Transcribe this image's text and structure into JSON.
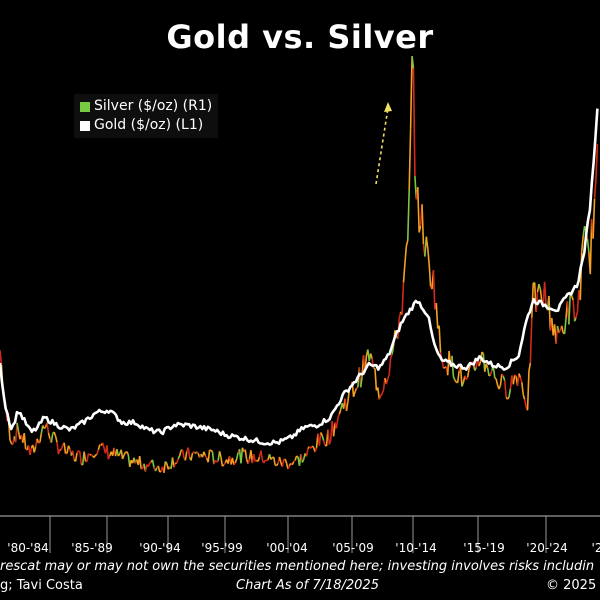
{
  "title": "Gold vs. Silver",
  "legend": [
    {
      "label": "Silver ($/oz) (R1)",
      "color": "#7ac943"
    },
    {
      "label": "Gold ($/oz) (L1)",
      "color": "#ffffff"
    }
  ],
  "footer": {
    "disclaimer": "rescat may or may not own the securities mentioned here; investing involves risks includin",
    "source": "g; Tavi Costa",
    "chart_as_of": "Chart As of 7/18/2025",
    "copyright": "© 2025"
  },
  "colors": {
    "background": "#000000",
    "gold": "#ffffff",
    "silver_high": "#7ac943",
    "silver_mid": "#f4a020",
    "silver_low": "#d42a1a",
    "arrow": "#f0e060"
  },
  "chart_data": {
    "type": "line",
    "title": "Gold vs. Silver",
    "xlabel": "",
    "ylabel": "",
    "x_tick_labels": [
      "'80-'84",
      "'85-'89",
      "'90-'94",
      "'95-'99",
      "'00-'04",
      "'05-'09",
      "'10-'14",
      "'15-'19",
      "'20-'24",
      "'2"
    ],
    "grid": false,
    "legend_position": "top-left",
    "series": [
      {
        "name": "Gold ($/oz) (L1)",
        "axis": "left",
        "color": "#ffffff",
        "x": [
          1979.6,
          1980.0,
          1980.5,
          1981.0,
          1982.0,
          1982.5,
          1983.0,
          1984.0,
          1985.0,
          1986.0,
          1987.0,
          1988.0,
          1989.0,
          1990.0,
          1991.0,
          1992.0,
          1993.0,
          1994.0,
          1995.0,
          1996.0,
          1997.0,
          1998.0,
          1999.0,
          2000.0,
          2001.0,
          2002.0,
          2003.0,
          2004.0,
          2005.0,
          2006.0,
          2007.0,
          2008.0,
          2008.8,
          2009.5,
          2010.0,
          2010.5,
          2011.0,
          2011.7,
          2012.5,
          2013.0,
          2013.5,
          2014.5,
          2015.5,
          2016.5,
          2017.5,
          2018.5,
          2019.5,
          2020.0,
          2020.6,
          2021.5,
          2022.5,
          2023.0,
          2023.5,
          2024.0,
          2024.5,
          2025.0,
          2025.55
        ],
        "values": [
          0.56,
          0.4,
          0.3,
          0.38,
          0.29,
          0.31,
          0.35,
          0.32,
          0.3,
          0.33,
          0.37,
          0.38,
          0.33,
          0.33,
          0.3,
          0.29,
          0.32,
          0.32,
          0.31,
          0.3,
          0.28,
          0.27,
          0.26,
          0.25,
          0.25,
          0.27,
          0.31,
          0.32,
          0.35,
          0.44,
          0.5,
          0.56,
          0.55,
          0.6,
          0.67,
          0.73,
          0.77,
          0.82,
          0.76,
          0.64,
          0.58,
          0.56,
          0.55,
          0.59,
          0.56,
          0.55,
          0.6,
          0.72,
          0.82,
          0.8,
          0.78,
          0.82,
          0.85,
          0.88,
          1.0,
          1.2,
          1.58
        ]
      },
      {
        "name": "Silver ($/oz) (R1)",
        "axis": "right",
        "color": "#7ac943",
        "x": [
          1979.6,
          1980.0,
          1980.5,
          1981.0,
          1982.0,
          1983.0,
          1984.0,
          1985.0,
          1986.0,
          1987.0,
          1988.0,
          1989.0,
          1990.0,
          1991.0,
          1992.0,
          1993.0,
          1994.0,
          1995.0,
          1996.0,
          1997.0,
          1998.0,
          1999.0,
          2000.0,
          2001.0,
          2002.0,
          2003.0,
          2004.0,
          2005.0,
          2006.0,
          2007.0,
          2008.0,
          2008.8,
          2009.5,
          2010.0,
          2010.5,
          2011.0,
          2011.35,
          2011.6,
          2012.0,
          2012.5,
          2013.0,
          2013.5,
          2014.5,
          2015.5,
          2016.5,
          2017.5,
          2018.5,
          2019.5,
          2020.2,
          2020.6,
          2021.5,
          2022.5,
          2023.5,
          2024.0,
          2024.5,
          2025.0,
          2025.55
        ],
        "values": [
          0.62,
          0.38,
          0.26,
          0.3,
          0.2,
          0.32,
          0.24,
          0.2,
          0.19,
          0.23,
          0.21,
          0.19,
          0.17,
          0.16,
          0.15,
          0.18,
          0.2,
          0.2,
          0.19,
          0.18,
          0.2,
          0.19,
          0.19,
          0.17,
          0.17,
          0.19,
          0.25,
          0.28,
          0.4,
          0.48,
          0.6,
          0.45,
          0.55,
          0.65,
          0.8,
          1.05,
          1.83,
          1.2,
          1.15,
          0.98,
          0.88,
          0.6,
          0.55,
          0.48,
          0.6,
          0.53,
          0.46,
          0.53,
          0.4,
          0.82,
          0.84,
          0.66,
          0.8,
          0.75,
          1.05,
          1.0,
          1.35
        ]
      }
    ]
  }
}
